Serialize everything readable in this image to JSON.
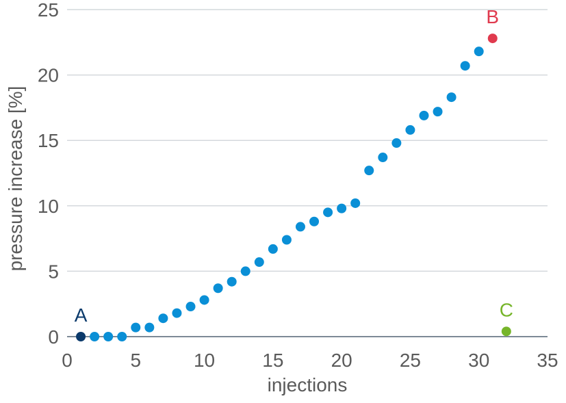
{
  "chart_data": {
    "type": "scatter",
    "xlabel": "injections",
    "ylabel": "pressure increase [%]",
    "xlim": [
      0,
      35
    ],
    "ylim": [
      0,
      25
    ],
    "xticks": [
      0,
      5,
      10,
      15,
      20,
      25,
      30,
      35
    ],
    "yticks": [
      0,
      5,
      10,
      15,
      20,
      25
    ],
    "grid": "horizontal",
    "series": [
      {
        "color": "#0a8fd6",
        "x": [
          2,
          3,
          4,
          5,
          6,
          7,
          8,
          9,
          10,
          11,
          12,
          13,
          14,
          15,
          16,
          17,
          18,
          19,
          20,
          21,
          22,
          23,
          24,
          25,
          26,
          27,
          28,
          29,
          30
        ],
        "y": [
          0,
          0,
          0,
          0.7,
          0.7,
          1.4,
          1.8,
          2.3,
          2.8,
          3.7,
          4.2,
          5.0,
          5.7,
          6.7,
          7.4,
          8.4,
          8.8,
          9.5,
          9.8,
          10.2,
          12.7,
          13.7,
          14.8,
          15.8,
          16.9,
          17.2,
          18.3,
          20.7,
          21.8
        ]
      }
    ],
    "annotations": [
      {
        "label": "A",
        "x": 1,
        "y": 0,
        "color": "#0b3a6b"
      },
      {
        "label": "B",
        "x": 31,
        "y": 22.8,
        "color": "#e03a4e"
      },
      {
        "label": "C",
        "x": 32,
        "y": 0.4,
        "color": "#76b52a"
      }
    ]
  }
}
